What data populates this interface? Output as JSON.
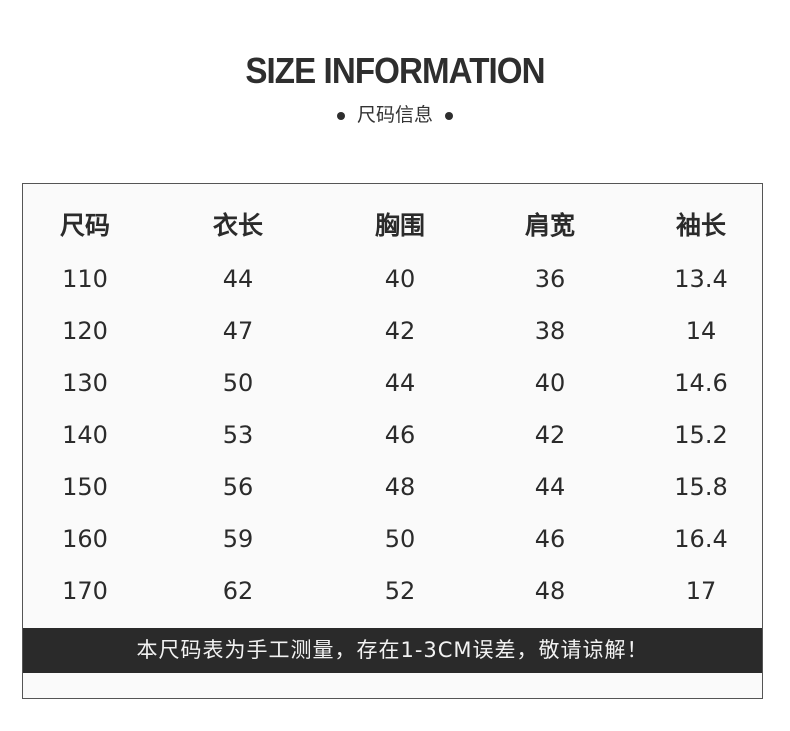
{
  "title": "SIZE INFORMATION",
  "subtitle": "尺码信息",
  "table": {
    "headers": [
      "尺码",
      "衣长",
      "胸围",
      "肩宽",
      "袖长"
    ],
    "rows": [
      [
        "110",
        "44",
        "40",
        "36",
        "13.4"
      ],
      [
        "120",
        "47",
        "42",
        "38",
        "14"
      ],
      [
        "130",
        "50",
        "44",
        "40",
        "14.6"
      ],
      [
        "140",
        "53",
        "46",
        "42",
        "15.2"
      ],
      [
        "150",
        "56",
        "48",
        "44",
        "15.8"
      ],
      [
        "160",
        "59",
        "50",
        "46",
        "16.4"
      ],
      [
        "170",
        "62",
        "52",
        "48",
        "17"
      ]
    ]
  },
  "note": "本尺码表为手工测量，存在1-3CM误差，敬请谅解！"
}
